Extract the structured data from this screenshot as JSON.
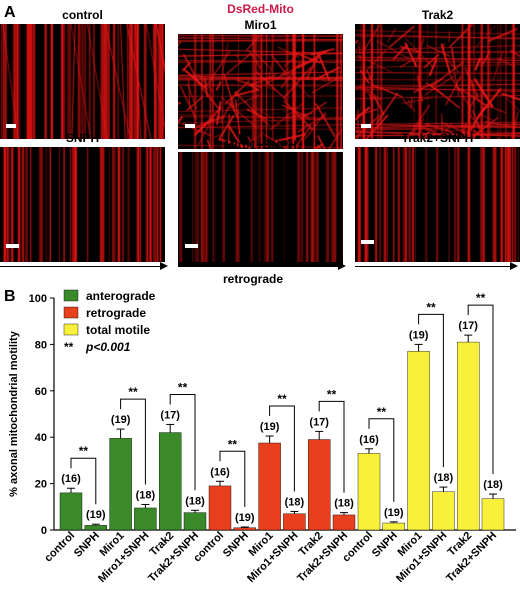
{
  "figure": {
    "panel_a_label": "A",
    "panel_b_label": "B",
    "header": "DsRed-Mito",
    "header_color": "#cc1a4a",
    "direction_label": "retrograde",
    "kymographs": [
      {
        "title": "control",
        "pattern": "dense-vertical"
      },
      {
        "title": "Miro1",
        "pattern": "motile"
      },
      {
        "title": "Trak2",
        "pattern": "motile"
      },
      {
        "title": "SNPH",
        "pattern": "stationary"
      },
      {
        "title": "Miro1+SNPH",
        "pattern": "stationary-dark"
      },
      {
        "title": "Trak2+SNPH",
        "pattern": "stationary"
      }
    ]
  },
  "chart_data": {
    "type": "bar",
    "ylabel": "% axonal mitochondrial motility",
    "ylim": [
      0,
      100
    ],
    "yticks": [
      0,
      20,
      40,
      60,
      80,
      100
    ],
    "categories": [
      "control",
      "SNPH",
      "Miro1",
      "Miro1+SNPH",
      "Trak2",
      "Trak2+SNPH"
    ],
    "legend": {
      "placement": "top-left",
      "items": [
        {
          "name": "anterograde",
          "color": "#3a8a2a"
        },
        {
          "name": "retrograde",
          "color": "#e8401c"
        },
        {
          "name": "total motile",
          "color": "#f8f03a"
        }
      ],
      "significance_symbol": "**",
      "significance_text": "p<0.001"
    },
    "series": [
      {
        "name": "anterograde",
        "color": "#3a8a2a",
        "values": [
          16,
          2,
          39.5,
          9.5,
          42,
          7.5
        ],
        "errors": [
          2,
          0.5,
          4,
          1.5,
          3.5,
          1
        ],
        "n": [
          "(16)",
          "(19)",
          "(19)",
          "(18)",
          "(17)",
          "(18)"
        ]
      },
      {
        "name": "retrograde",
        "color": "#e8401c",
        "values": [
          19,
          1,
          37.5,
          7,
          39,
          6.5
        ],
        "errors": [
          2,
          0.3,
          3,
          1,
          3.5,
          1
        ],
        "n": [
          "(16)",
          "(19)",
          "(19)",
          "(18)",
          "(17)",
          "(18)"
        ]
      },
      {
        "name": "total motile",
        "color": "#f8f03a",
        "values": [
          33,
          3,
          77,
          16.5,
          81,
          13.5
        ],
        "errors": [
          2,
          0.5,
          3,
          2,
          3,
          2
        ],
        "n": [
          "(16)",
          "(19)",
          "(19)",
          "(18)",
          "(17)",
          "(18)"
        ]
      }
    ],
    "comparisons": [
      {
        "from": 0,
        "to": 1,
        "label": "**"
      },
      {
        "from": 2,
        "to": 3,
        "label": "**"
      },
      {
        "from": 4,
        "to": 5,
        "label": "**"
      }
    ]
  }
}
